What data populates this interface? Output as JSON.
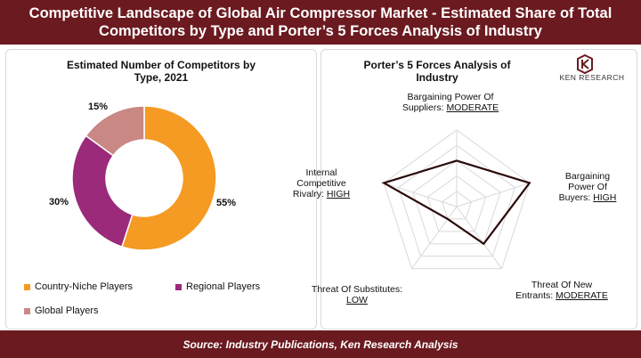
{
  "header": {
    "title_line1": "Competitive Landscape of Global Air Compressor Market - Estimated Share of Total",
    "title_line2": "Competitors by Type and Porter’s 5 Forces Analysis of Industry"
  },
  "logo": {
    "text": "KEN RESEARCH",
    "icon": "ken-research-logo-icon"
  },
  "footer": {
    "source": "Source: Industry Publications, Ken Research Analysis"
  },
  "colors": {
    "header_bg": "#6b1a20",
    "country_niche": "#f59a23",
    "regional": "#9b2a7a",
    "global": "#c98883",
    "radar_line": "#2b0a0a",
    "grid": "#d9d9d9"
  },
  "chart_data": [
    {
      "type": "pie",
      "variant": "donut",
      "title_line1": "Estimated Number of Competitors by",
      "title_line2": "Type, 2021",
      "categories": [
        "Country-Niche Players",
        "Regional Players",
        "Global Players"
      ],
      "values": [
        55,
        30,
        15
      ],
      "labels": [
        "55%",
        "30%",
        "15%"
      ],
      "legend_position": "bottom"
    },
    {
      "type": "radar",
      "title_line1": "Porter’s 5 Forces Analysis of",
      "title_line2": "Industry",
      "axes": [
        {
          "name_lines": [
            "Bargaining Power Of",
            "Suppliers: "
          ],
          "level": "MODERATE"
        },
        {
          "name_lines": [
            "Bargaining",
            "Power Of",
            "Buyers: "
          ],
          "level": "HIGH"
        },
        {
          "name_lines": [
            "Threat Of New",
            "Entrants: "
          ],
          "level": "MODERATE"
        },
        {
          "name_lines": [
            "Threat Of Substitutes:",
            ""
          ],
          "level": "LOW"
        },
        {
          "name_lines": [
            "Internal",
            "Competitive",
            "Rivalry: "
          ],
          "level": "HIGH"
        }
      ],
      "values": [
        3,
        5,
        3,
        1,
        5
      ],
      "range": [
        0,
        5
      ],
      "grid_rings": 5
    }
  ]
}
